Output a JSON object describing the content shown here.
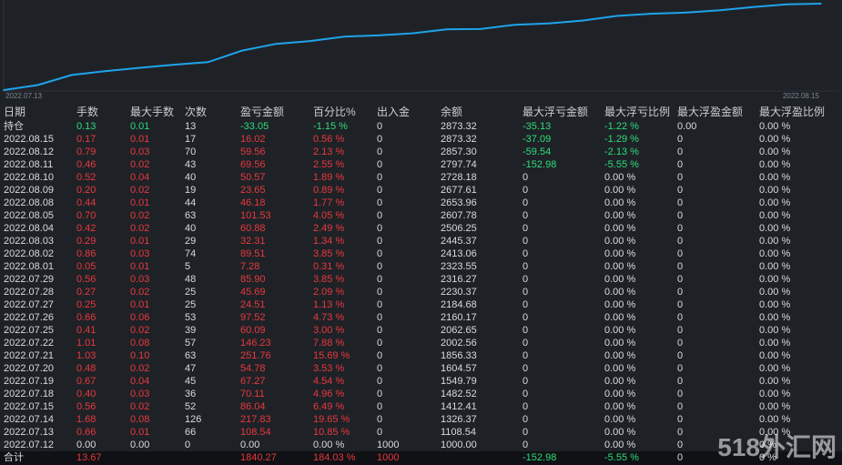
{
  "chart_data": {
    "type": "line",
    "x_start": "2022.07.13",
    "x_end": "2022.08.15",
    "x_labels": [
      "2022.07.13",
      "2022.08.15"
    ],
    "series": [
      {
        "values": [
          1000.0,
          1108.54,
          1326.37,
          1412.41,
          1482.52,
          1549.79,
          1604.57,
          1856.33,
          2002.56,
          2062.65,
          2160.17,
          2184.68,
          2230.37,
          2316.27,
          2323.55,
          2413.06,
          2445.37,
          2506.25,
          2607.78,
          2653.96,
          2677.61,
          2728.18,
          2797.74,
          2857.3,
          2873.32
        ]
      }
    ],
    "line_color": "#1fa3ea",
    "grid": false
  },
  "table": {
    "headers": [
      "日期",
      "手数",
      "最大手数",
      "次数",
      "盈亏金额",
      "百分比%",
      "出入金",
      "余额",
      "最大浮亏金额",
      "最大浮亏比例",
      "最大浮盈金额",
      "最大浮盈比例"
    ],
    "holding": [
      "持仓",
      "0.13",
      "0.01",
      "13",
      "-33.05",
      "-1.15 %",
      "0",
      "2873.32",
      "-35.13",
      "-1.22 %",
      "0.00",
      "0.00 %"
    ],
    "rows": [
      [
        "2022.08.15",
        "0.17",
        "0.01",
        "17",
        "16.02",
        "0.56 %",
        "0",
        "2873.32",
        "-37.09",
        "-1.29 %",
        "0",
        "0.00 %"
      ],
      [
        "2022.08.12",
        "0.79",
        "0.03",
        "70",
        "59.56",
        "2.13 %",
        "0",
        "2857.30",
        "-59.54",
        "-2.13 %",
        "0",
        "0.00 %"
      ],
      [
        "2022.08.11",
        "0.46",
        "0.02",
        "43",
        "69.56",
        "2.55 %",
        "0",
        "2797.74",
        "-152.98",
        "-5.55 %",
        "0",
        "0.00 %"
      ],
      [
        "2022.08.10",
        "0.52",
        "0.04",
        "40",
        "50.57",
        "1.89 %",
        "0",
        "2728.18",
        "0",
        "0.00 %",
        "0",
        "0.00 %"
      ],
      [
        "2022.08.09",
        "0.20",
        "0.02",
        "19",
        "23.65",
        "0.89 %",
        "0",
        "2677.61",
        "0",
        "0.00 %",
        "0",
        "0.00 %"
      ],
      [
        "2022.08.08",
        "0.44",
        "0.01",
        "44",
        "46.18",
        "1.77 %",
        "0",
        "2653.96",
        "0",
        "0.00 %",
        "0",
        "0.00 %"
      ],
      [
        "2022.08.05",
        "0.70",
        "0.02",
        "63",
        "101.53",
        "4.05 %",
        "0",
        "2607.78",
        "0",
        "0.00 %",
        "0",
        "0.00 %"
      ],
      [
        "2022.08.04",
        "0.42",
        "0.02",
        "40",
        "60.88",
        "2.49 %",
        "0",
        "2506.25",
        "0",
        "0.00 %",
        "0",
        "0.00 %"
      ],
      [
        "2022.08.03",
        "0.29",
        "0.01",
        "29",
        "32.31",
        "1.34 %",
        "0",
        "2445.37",
        "0",
        "0.00 %",
        "0",
        "0.00 %"
      ],
      [
        "2022.08.02",
        "0.86",
        "0.03",
        "74",
        "89.51",
        "3.85 %",
        "0",
        "2413.06",
        "0",
        "0.00 %",
        "0",
        "0.00 %"
      ],
      [
        "2022.08.01",
        "0.05",
        "0.01",
        "5",
        "7.28",
        "0.31 %",
        "0",
        "2323.55",
        "0",
        "0.00 %",
        "0",
        "0.00 %"
      ],
      [
        "2022.07.29",
        "0.56",
        "0.03",
        "48",
        "85.90",
        "3.85 %",
        "0",
        "2316.27",
        "0",
        "0.00 %",
        "0",
        "0.00 %"
      ],
      [
        "2022.07.28",
        "0.27",
        "0.02",
        "25",
        "45.69",
        "2.09 %",
        "0",
        "2230.37",
        "0",
        "0.00 %",
        "0",
        "0.00 %"
      ],
      [
        "2022.07.27",
        "0.25",
        "0.01",
        "25",
        "24.51",
        "1.13 %",
        "0",
        "2184.68",
        "0",
        "0.00 %",
        "0",
        "0.00 %"
      ],
      [
        "2022.07.26",
        "0.66",
        "0.06",
        "53",
        "97.52",
        "4.73 %",
        "0",
        "2160.17",
        "0",
        "0.00 %",
        "0",
        "0.00 %"
      ],
      [
        "2022.07.25",
        "0.41",
        "0.02",
        "39",
        "60.09",
        "3.00 %",
        "0",
        "2062.65",
        "0",
        "0.00 %",
        "0",
        "0.00 %"
      ],
      [
        "2022.07.22",
        "1.01",
        "0.08",
        "57",
        "146.23",
        "7.88 %",
        "0",
        "2002.56",
        "0",
        "0.00 %",
        "0",
        "0.00 %"
      ],
      [
        "2022.07.21",
        "1.03",
        "0.10",
        "63",
        "251.76",
        "15.69 %",
        "0",
        "1856.33",
        "0",
        "0.00 %",
        "0",
        "0.00 %"
      ],
      [
        "2022.07.20",
        "0.48",
        "0.02",
        "47",
        "54.78",
        "3.53 %",
        "0",
        "1604.57",
        "0",
        "0.00 %",
        "0",
        "0.00 %"
      ],
      [
        "2022.07.19",
        "0.67",
        "0.04",
        "45",
        "67.27",
        "4.54 %",
        "0",
        "1549.79",
        "0",
        "0.00 %",
        "0",
        "0.00 %"
      ],
      [
        "2022.07.18",
        "0.40",
        "0.03",
        "36",
        "70.11",
        "4.96 %",
        "0",
        "1482.52",
        "0",
        "0.00 %",
        "0",
        "0.00 %"
      ],
      [
        "2022.07.15",
        "0.56",
        "0.02",
        "52",
        "86.04",
        "6.49 %",
        "0",
        "1412.41",
        "0",
        "0.00 %",
        "0",
        "0.00 %"
      ],
      [
        "2022.07.14",
        "1.68",
        "0.08",
        "126",
        "217.83",
        "19.65 %",
        "0",
        "1326.37",
        "0",
        "0.00 %",
        "0",
        "0.00 %"
      ],
      [
        "2022.07.13",
        "0.66",
        "0.01",
        "66",
        "108.54",
        "10.85 %",
        "0",
        "1108.54",
        "0",
        "0.00 %",
        "0",
        "0.00 %"
      ]
    ],
    "initial": [
      "2022.07.12",
      "0.00",
      "0.00",
      "0",
      "0.00",
      "0.00 %",
      "1000",
      "1000.00",
      "0",
      "0.00 %",
      "0",
      "0 %"
    ],
    "total": [
      "合计",
      "13.67",
      "",
      "",
      "1840.27",
      "184.03 %",
      "1000",
      "",
      "-152.98",
      "-5.55 %",
      "0",
      "0 %"
    ]
  },
  "colors": {
    "red": "#e8383d",
    "green": "#2fdc7a",
    "white": "#d7dadf",
    "line": "#1fa3ea"
  },
  "watermark": "518外汇网"
}
